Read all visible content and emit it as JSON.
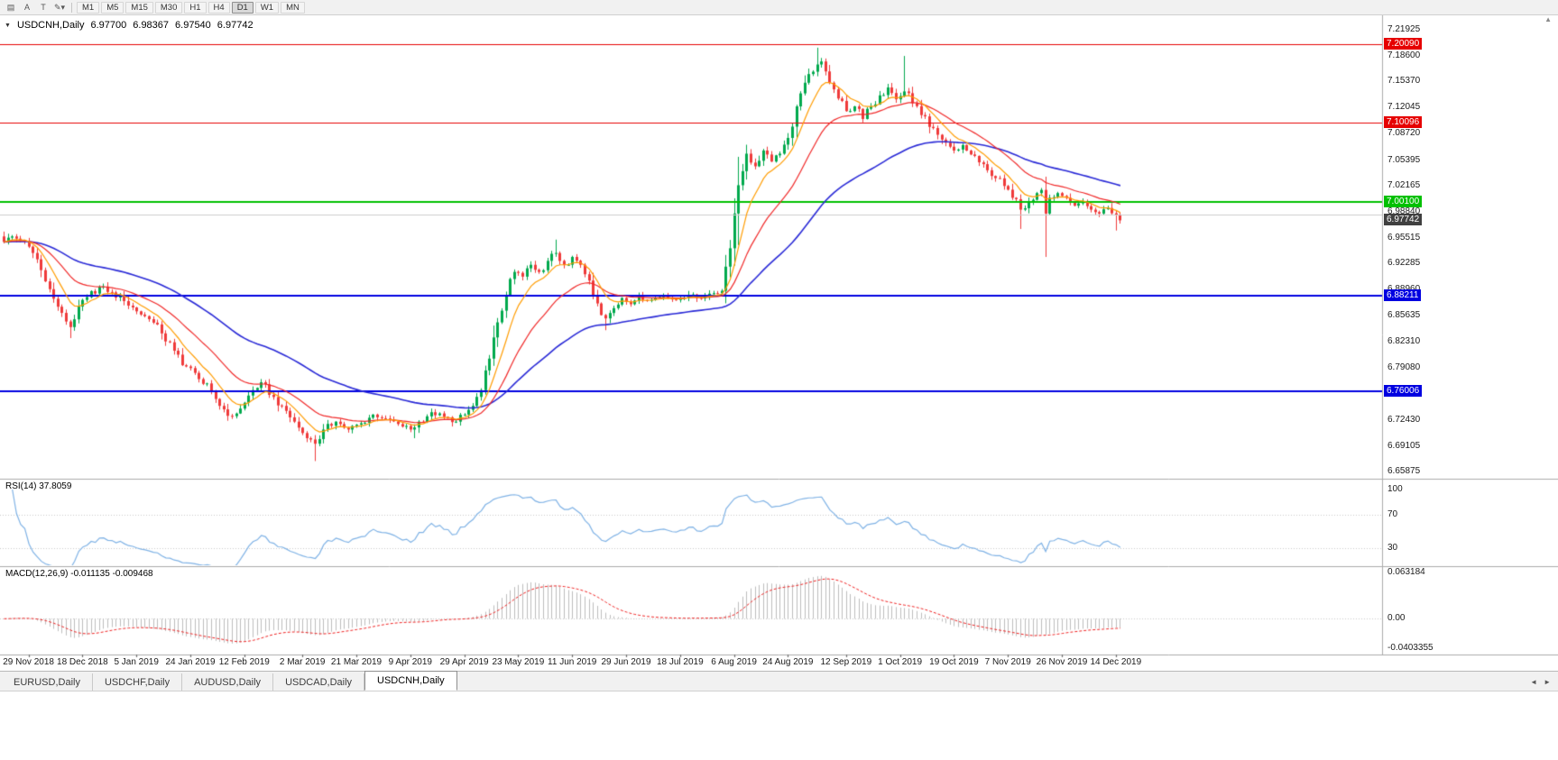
{
  "toolbar": {
    "icons": [
      {
        "name": "chart-window-icon",
        "glyph": "▤"
      },
      {
        "name": "cursor-icon",
        "glyph": "A"
      },
      {
        "name": "text-label-icon",
        "glyph": "T"
      },
      {
        "name": "draw-tools-icon",
        "glyph": "✎▾"
      }
    ],
    "timeframes": [
      "M1",
      "M5",
      "M15",
      "M30",
      "H1",
      "H4",
      "D1",
      "W1",
      "MN"
    ],
    "active_timeframe": "D1"
  },
  "header": {
    "dropdown_glyph": "▼",
    "title": "USDCNH,Daily",
    "open": "6.97700",
    "high": "6.98367",
    "low": "6.97540",
    "close": "6.97742"
  },
  "indicators": {
    "rsi_label": "RSI(14) 37.8059",
    "macd_label": "MACD(12,26,9) -0.011135 -0.009468"
  },
  "tabs": {
    "items": [
      {
        "label": "EURUSD,Daily",
        "active": false
      },
      {
        "label": "USDCHF,Daily",
        "active": false
      },
      {
        "label": "AUDUSD,Daily",
        "active": false
      },
      {
        "label": "USDCAD,Daily",
        "active": false
      },
      {
        "label": "USDCNH,Daily",
        "active": true
      }
    ]
  },
  "misc": {
    "corner_arrow": "▲",
    "tab_scroll_left": "◄",
    "tab_scroll_right": "►"
  },
  "chart_data": {
    "type": "candlestick",
    "symbol": "USDCNH",
    "timeframe": "Daily",
    "ohlc_display": {
      "open": 6.977,
      "high": 6.98367,
      "low": 6.9754,
      "close": 6.97742
    },
    "price_range": {
      "top": 7.21925,
      "bottom": 6.65875
    },
    "price_axis_ticks": [
      "7.21925",
      "7.18600",
      "7.15370",
      "7.12045",
      "7.08720",
      "7.05395",
      "7.02165",
      "6.98840",
      "6.95515",
      "6.92285",
      "6.88960",
      "6.85635",
      "6.82310",
      "6.79080",
      "6.75755",
      "6.72430",
      "6.69105",
      "6.65875"
    ],
    "levels": [
      {
        "price": 7.2009,
        "label": "7.20090",
        "color": "#e60000",
        "width": 1
      },
      {
        "price": 7.10096,
        "label": "7.10096",
        "color": "#e60000",
        "width": 1
      },
      {
        "price": 7.001,
        "label": "7.00100",
        "color": "#00c000",
        "width": 2
      },
      {
        "price": 6.98475,
        "label": null,
        "color": "#cccccc",
        "width": 1
      },
      {
        "price": 6.88211,
        "label": "6.88211",
        "color": "#0000e0",
        "width": 2
      },
      {
        "price": 6.76006,
        "label": "6.76006",
        "color": "#0000e0",
        "width": 2
      }
    ],
    "current_price": {
      "value": 6.97742,
      "label": "6.97742",
      "bg": "#404040"
    },
    "bars": 270,
    "close_keyframes": [
      [
        0,
        6.95
      ],
      [
        2,
        6.957
      ],
      [
        4,
        6.952
      ],
      [
        6,
        6.944
      ],
      [
        8,
        6.928
      ],
      [
        10,
        6.9
      ],
      [
        12,
        6.878
      ],
      [
        14,
        6.86
      ],
      [
        16,
        6.842
      ],
      [
        18,
        6.868
      ],
      [
        20,
        6.88
      ],
      [
        23,
        6.893
      ],
      [
        26,
        6.886
      ],
      [
        29,
        6.875
      ],
      [
        32,
        6.862
      ],
      [
        35,
        6.852
      ],
      [
        38,
        6.834
      ],
      [
        41,
        6.812
      ],
      [
        44,
        6.792
      ],
      [
        47,
        6.776
      ],
      [
        50,
        6.76
      ],
      [
        52,
        6.742
      ],
      [
        55,
        6.729
      ],
      [
        58,
        6.746
      ],
      [
        60,
        6.762
      ],
      [
        62,
        6.772
      ],
      [
        64,
        6.756
      ],
      [
        67,
        6.742
      ],
      [
        70,
        6.722
      ],
      [
        73,
        6.701
      ],
      [
        75,
        6.694
      ],
      [
        77,
        6.712
      ],
      [
        80,
        6.722
      ],
      [
        83,
        6.712
      ],
      [
        86,
        6.72
      ],
      [
        89,
        6.731
      ],
      [
        92,
        6.726
      ],
      [
        95,
        6.719
      ],
      [
        98,
        6.712
      ],
      [
        100,
        6.722
      ],
      [
        103,
        6.734
      ],
      [
        106,
        6.728
      ],
      [
        109,
        6.722
      ],
      [
        111,
        6.731
      ],
      [
        113,
        6.742
      ],
      [
        115,
        6.762
      ],
      [
        117,
        6.802
      ],
      [
        119,
        6.848
      ],
      [
        121,
        6.882
      ],
      [
        123,
        6.912
      ],
      [
        125,
        6.906
      ],
      [
        127,
        6.921
      ],
      [
        129,
        6.912
      ],
      [
        131,
        6.926
      ],
      [
        133,
        6.936
      ],
      [
        135,
        6.921
      ],
      [
        137,
        6.931
      ],
      [
        139,
        6.921
      ],
      [
        141,
        6.901
      ],
      [
        143,
        6.872
      ],
      [
        145,
        6.853
      ],
      [
        147,
        6.866
      ],
      [
        149,
        6.879
      ],
      [
        151,
        6.871
      ],
      [
        153,
        6.881
      ],
      [
        155,
        6.876
      ],
      [
        157,
        6.879
      ],
      [
        159,
        6.881
      ],
      [
        161,
        6.877
      ],
      [
        163,
        6.879
      ],
      [
        165,
        6.883
      ],
      [
        167,
        6.879
      ],
      [
        169,
        6.881
      ],
      [
        171,
        6.885
      ],
      [
        173,
        6.888
      ],
      [
        175,
        6.942
      ],
      [
        177,
        7.022
      ],
      [
        179,
        7.062
      ],
      [
        181,
        7.046
      ],
      [
        183,
        7.066
      ],
      [
        185,
        7.052
      ],
      [
        187,
        7.062
      ],
      [
        189,
        7.082
      ],
      [
        191,
        7.122
      ],
      [
        193,
        7.152
      ],
      [
        195,
        7.166
      ],
      [
        197,
        7.179
      ],
      [
        199,
        7.152
      ],
      [
        201,
        7.132
      ],
      [
        203,
        7.116
      ],
      [
        205,
        7.122
      ],
      [
        207,
        7.106
      ],
      [
        209,
        7.122
      ],
      [
        211,
        7.136
      ],
      [
        213,
        7.146
      ],
      [
        215,
        7.131
      ],
      [
        217,
        7.141
      ],
      [
        219,
        7.126
      ],
      [
        221,
        7.111
      ],
      [
        223,
        7.096
      ],
      [
        225,
        7.086
      ],
      [
        227,
        7.076
      ],
      [
        229,
        7.066
      ],
      [
        231,
        7.073
      ],
      [
        233,
        7.061
      ],
      [
        235,
        7.051
      ],
      [
        237,
        7.041
      ],
      [
        239,
        7.031
      ],
      [
        241,
        7.021
      ],
      [
        243,
        7.006
      ],
      [
        245,
        6.991
      ],
      [
        247,
        7.001
      ],
      [
        249,
        7.012
      ],
      [
        250,
        7.016
      ],
      [
        251,
        6.986
      ],
      [
        252,
        7.006
      ],
      [
        254,
        7.012
      ],
      [
        256,
        7.006
      ],
      [
        258,
        6.996
      ],
      [
        260,
        7.001
      ],
      [
        262,
        6.991
      ],
      [
        264,
        6.986
      ],
      [
        266,
        6.993
      ],
      [
        268,
        6.984
      ],
      [
        269,
        6.97742
      ]
    ],
    "spikes": [
      {
        "i": 16,
        "low": 6.828
      },
      {
        "i": 75,
        "low": 6.672
      },
      {
        "i": 99,
        "low": 6.701
      },
      {
        "i": 133,
        "high": 6.953
      },
      {
        "i": 145,
        "low": 6.838
      },
      {
        "i": 177,
        "high": 7.058,
        "low": 6.946
      },
      {
        "i": 196,
        "high": 7.1965
      },
      {
        "i": 217,
        "high": 7.186
      },
      {
        "i": 245,
        "low": 6.9665
      },
      {
        "i": 251,
        "low": 6.931
      },
      {
        "i": 268,
        "low": 6.9645
      }
    ],
    "date_labels": [
      {
        "i": 6,
        "label": "29 Nov 2018"
      },
      {
        "i": 19,
        "label": "18 Dec 2018"
      },
      {
        "i": 32,
        "label": "5 Jan 2019"
      },
      {
        "i": 45,
        "label": "24 Jan 2019"
      },
      {
        "i": 58,
        "label": "12 Feb 2019"
      },
      {
        "i": 72,
        "label": "2 Mar 2019"
      },
      {
        "i": 85,
        "label": "21 Mar 2019"
      },
      {
        "i": 98,
        "label": "9 Apr 2019"
      },
      {
        "i": 111,
        "label": "29 Apr 2019"
      },
      {
        "i": 124,
        "label": "23 May 2019"
      },
      {
        "i": 137,
        "label": "11 Jun 2019"
      },
      {
        "i": 150,
        "label": "29 Jun 2019"
      },
      {
        "i": 163,
        "label": "18 Jul 2019"
      },
      {
        "i": 176,
        "label": "6 Aug 2019"
      },
      {
        "i": 189,
        "label": "24 Aug 2019"
      },
      {
        "i": 203,
        "label": "12 Sep 2019"
      },
      {
        "i": 216,
        "label": "1 Oct 2019"
      },
      {
        "i": 229,
        "label": "19 Oct 2019"
      },
      {
        "i": 242,
        "label": "7 Nov 2019"
      },
      {
        "i": 255,
        "label": "26 Nov 2019"
      },
      {
        "i": 268,
        "label": "14 Dec 2019"
      }
    ],
    "moving_averages": [
      {
        "period": 55,
        "color": "#2929d6",
        "width": 1.6
      },
      {
        "period": 21,
        "color": "#f02929",
        "width": 1.2
      },
      {
        "period": 8,
        "color": "#ff9c00",
        "width": 1.2
      }
    ],
    "rsi": {
      "period": 14,
      "levels": [
        100,
        70,
        30
      ],
      "guides": [
        70,
        30
      ],
      "color": "#7fb2e5",
      "current": 37.8059
    },
    "macd": {
      "fast": 12,
      "slow": 26,
      "signal": 9,
      "axis_ticks": [
        "0.063184",
        "0.00",
        "-0.0403355"
      ],
      "histogram_color": "#bdbdbd",
      "signal_color": "#ee2020",
      "current_main": -0.011135,
      "current_signal": -0.009468
    },
    "colors": {
      "up": "#00a94d",
      "down": "#ef3a3a"
    }
  }
}
